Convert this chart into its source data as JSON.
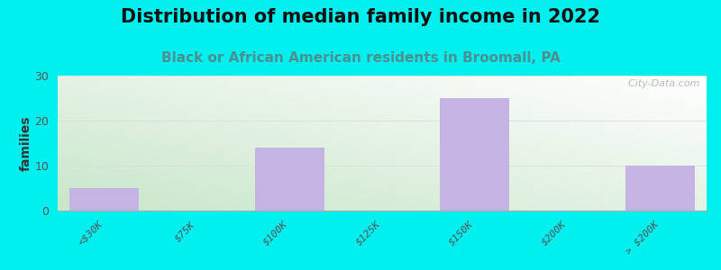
{
  "title": "Distribution of median family income in 2022",
  "subtitle": "Black or African American residents in Broomall, PA",
  "categories": [
    "<$30K",
    "$75K",
    "$100K",
    "$125K",
    "$150K",
    "$200K",
    "> $200K"
  ],
  "values": [
    5,
    0,
    14,
    0,
    25,
    0,
    10
  ],
  "bar_color": "#c5b4e3",
  "background_color": "#00f0f0",
  "plot_bg_top_left": "#c8e6c9",
  "plot_bg_bottom_right": "#f5fff5",
  "ylabel": "families",
  "ylim": [
    0,
    30
  ],
  "yticks": [
    0,
    10,
    20,
    30
  ],
  "title_fontsize": 15,
  "subtitle_fontsize": 11,
  "subtitle_color": "#4a9090",
  "watermark": "  City-Data.com",
  "tick_label_color": "#555555",
  "tick_label_fontsize": 8,
  "grid_color": "#dddddd",
  "ylabel_fontsize": 10
}
